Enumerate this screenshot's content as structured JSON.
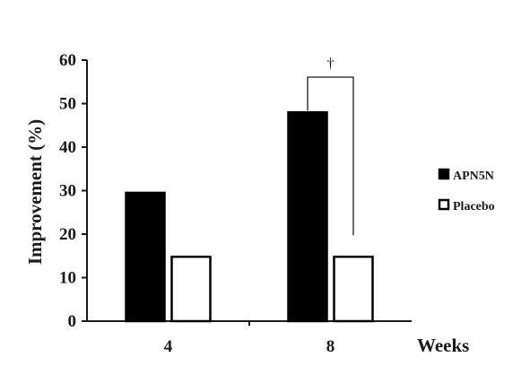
{
  "chart_data": {
    "type": "bar",
    "categories": [
      "4",
      "8"
    ],
    "series": [
      {
        "name": "APN5N",
        "values": [
          29.5,
          48
        ],
        "color": "#000000"
      },
      {
        "name": "Placebo",
        "values": [
          14.8,
          14.8
        ],
        "color": "#ffffff"
      }
    ],
    "ylabel": "Improvement (%)",
    "xlabel": "Weeks",
    "ylim": [
      0,
      60
    ],
    "yticks": [
      "0",
      "10",
      "20",
      "30",
      "40",
      "50",
      "60"
    ],
    "legend_position": "right",
    "grid": false,
    "annotation": {
      "text": "†",
      "category": "8"
    }
  }
}
